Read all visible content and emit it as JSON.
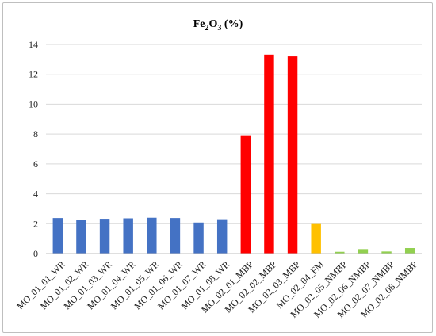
{
  "chart_data": {
    "type": "bar",
    "title": {
      "main": "Fe",
      "sub1": "2",
      "mid": "O",
      "sub2": "3",
      "tail": " (%)"
    },
    "xlabel": "",
    "ylabel": "",
    "ylim": [
      0,
      14
    ],
    "yticks": [
      0,
      2,
      4,
      6,
      8,
      10,
      12,
      14
    ],
    "grid": true,
    "legend": "none",
    "categories": [
      "MO_01_01_WR",
      "MO_01_02_WR",
      "MO_01_03_WR",
      "MO_01_04_WR",
      "MO_01_05_WR",
      "MO_01_06_WR",
      "MO_01_07_WR",
      "MO_01_08_WR",
      "MO_02_01_MBP",
      "MO_02_02_MBP",
      "MO_02_03_MBP",
      "MO_02_04_FM",
      "MO_02_05_NMBP",
      "MO_02_06_NMBP",
      "MO_02_07_NMBP",
      "MO_02_08_NMBP"
    ],
    "values": [
      2.38,
      2.28,
      2.33,
      2.36,
      2.4,
      2.38,
      2.08,
      2.3,
      7.92,
      13.32,
      13.2,
      1.98,
      0.12,
      0.3,
      0.14,
      0.37
    ],
    "bar_colors": [
      "#4472c4",
      "#4472c4",
      "#4472c4",
      "#4472c4",
      "#4472c4",
      "#4472c4",
      "#4472c4",
      "#4472c4",
      "#ff0000",
      "#ff0000",
      "#ff0000",
      "#ffc000",
      "#92d050",
      "#92d050",
      "#92d050",
      "#92d050"
    ]
  }
}
